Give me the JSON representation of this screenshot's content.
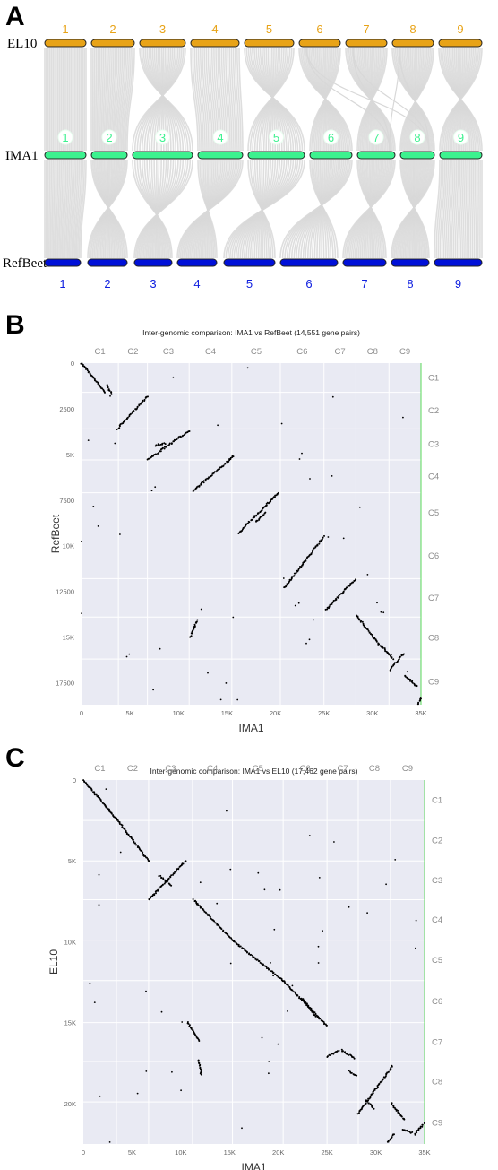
{
  "figure": {
    "panel_a_label": "A",
    "panel_b_label": "B",
    "panel_c_label": "C"
  },
  "colors": {
    "el10_bar": "#E8A317",
    "el10_text": "#E8A317",
    "ima1_bar": "#3CF28F",
    "ima1_text": "#3CF28F",
    "refbeet_bar": "#0010D8",
    "refbeet_text": "#1020E0",
    "ribbon": "#D8D8D8",
    "dot_bg": "#E9EAF3",
    "grid": "#FFFFFF",
    "dots": "#000000",
    "right_axis": "#5ADB5A",
    "chrom_label": "#8C8C8C"
  },
  "chart_data": [
    {
      "type": "synteny",
      "genomes": [
        {
          "name": "EL10",
          "chromosomes": [
            "1",
            "2",
            "3",
            "4",
            "5",
            "6",
            "7",
            "8",
            "9"
          ]
        },
        {
          "name": "IMA1",
          "chromosomes": [
            "1",
            "2",
            "3",
            "4",
            "5",
            "6",
            "7",
            "8",
            "9"
          ]
        },
        {
          "name": "RefBeet",
          "chromosomes": [
            "1",
            "2",
            "3",
            "4",
            "5",
            "6",
            "7",
            "8",
            "9"
          ]
        }
      ]
    },
    {
      "type": "scatter",
      "title": "Inter-genomic comparison: IMA1 vs RefBeet (14,551 gene pairs)",
      "xlabel": "IMA1",
      "ylabel": "RefBeet",
      "xlim": [
        0,
        35000
      ],
      "ylim": [
        0,
        18700
      ],
      "x_ticks": [
        "0",
        "5K",
        "10K",
        "15K",
        "20K",
        "25K",
        "30K",
        "35K"
      ],
      "y_ticks": [
        "0",
        "2500",
        "5K",
        "7500",
        "10K",
        "12500",
        "15K",
        "17500"
      ],
      "x_chromosomes": [
        "C1",
        "C2",
        "C3",
        "C4",
        "C5",
        "C6",
        "C7",
        "C8",
        "C9"
      ],
      "x_chrom_bounds": [
        0,
        3800,
        6800,
        11100,
        15500,
        20500,
        25000,
        28300,
        31700,
        35000
      ],
      "y_chromosomes": [
        "C1",
        "C2",
        "C3",
        "C4",
        "C5",
        "C6",
        "C7",
        "C8",
        "C9"
      ],
      "y_chrom_bounds": [
        0,
        1600,
        3600,
        5300,
        7100,
        9300,
        11800,
        13900,
        16200,
        18700
      ],
      "grid": true
    },
    {
      "type": "scatter",
      "title": "Inter-genomic comparison: IMA1 vs EL10 (17,462 gene pairs)",
      "xlabel": "IMA1",
      "ylabel": "EL10",
      "xlim": [
        0,
        35000
      ],
      "ylim": [
        0,
        22500
      ],
      "x_ticks": [
        "0",
        "5K",
        "10K",
        "15K",
        "20K",
        "25K",
        "30K",
        "35K"
      ],
      "y_ticks": [
        "0",
        "5K",
        "10K",
        "15K",
        "20K"
      ],
      "x_chromosomes": [
        "C1",
        "C2",
        "C3",
        "C4",
        "C5",
        "C6",
        "C7",
        "C8",
        "C9"
      ],
      "x_chrom_bounds": [
        0,
        3400,
        6700,
        11200,
        15300,
        20500,
        25000,
        28200,
        31500,
        35000
      ],
      "y_chromosomes": [
        "C1",
        "C2",
        "C3",
        "C4",
        "C5",
        "C6",
        "C7",
        "C8",
        "C9"
      ],
      "y_chrom_bounds": [
        0,
        2500,
        5000,
        7400,
        9900,
        12400,
        15000,
        17400,
        19900,
        22500
      ],
      "grid": true
    }
  ]
}
